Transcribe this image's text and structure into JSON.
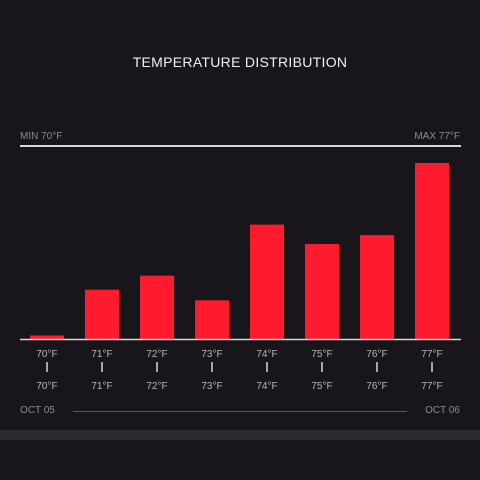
{
  "header": {
    "title": "TEMPERATURE DISTRIBUTION",
    "min_label": "MIN 70°F",
    "max_label": "MAX 77°F"
  },
  "timeline": {
    "start": "OCT 05",
    "end": "OCT 06"
  },
  "colors": {
    "bar": "#ff1a2d",
    "background": "#18161a",
    "axis": "#d8d6da"
  },
  "chart_data": {
    "type": "bar",
    "title": "TEMPERATURE DISTRIBUTION",
    "categories": [
      "70°F",
      "71°F",
      "72°F",
      "73°F",
      "74°F",
      "75°F",
      "76°F",
      "77°F"
    ],
    "upper_tick_labels": [
      "70°F",
      "71°F",
      "72°F",
      "73°F",
      "74°F",
      "75°F",
      "76°F",
      "77°F"
    ],
    "lower_tick_labels": [
      "70°F",
      "71°F",
      "72°F",
      "73°F",
      "74°F",
      "75°F",
      "76°F",
      "77°F"
    ],
    "values": [
      2,
      28,
      36,
      22,
      65,
      54,
      59,
      100
    ],
    "ylim": [
      0,
      100
    ],
    "xlabel": "",
    "ylabel": "",
    "grid": false,
    "legend": "none"
  }
}
